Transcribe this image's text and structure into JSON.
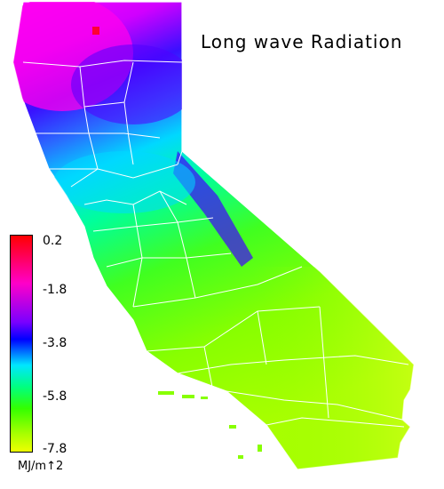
{
  "title": "Long wave Radiation",
  "legend": {
    "ticks": [
      "0.2",
      "-1.8",
      "-3.8",
      "-5.8",
      "-7.8"
    ],
    "unit": "MJ/m↑2",
    "min": -7.8,
    "max": 0.2,
    "colors": [
      "#ff0000",
      "#ff00c8",
      "#0000ff",
      "#00e6ff",
      "#00ff80",
      "#33ff00",
      "#eeff00"
    ]
  },
  "map": {
    "region": "California",
    "county_boundary_color": "#ffffff"
  }
}
